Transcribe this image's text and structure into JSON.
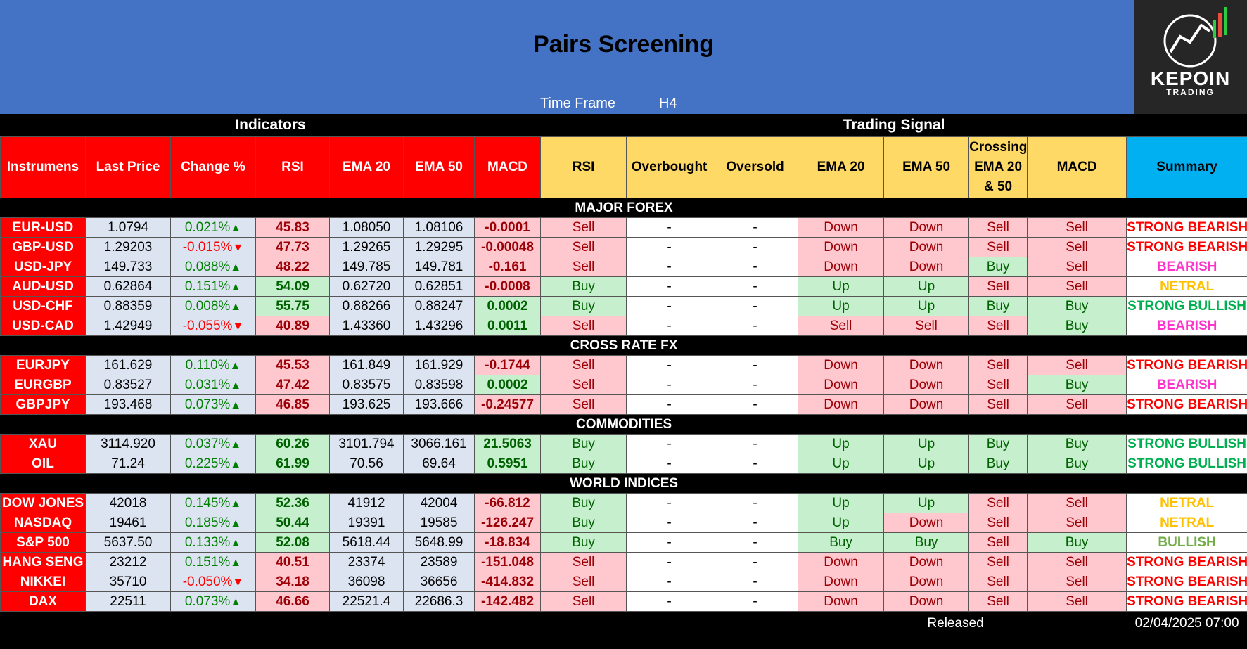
{
  "header": {
    "title": "Pairs Screening",
    "timeframe_label": "Time Frame",
    "timeframe": "H4",
    "logo": "KEPOIN",
    "logo_sub": "TRADING"
  },
  "groups": [
    "Indicators",
    "Trading Signal"
  ],
  "columns": [
    "Instrumens",
    "Last Price",
    "Change %",
    "RSI",
    "EMA 20",
    "EMA 50",
    "MACD",
    "RSI",
    "Overbought",
    "Oversold",
    "EMA 20",
    "EMA 50",
    "Crossing EMA 20 & 50",
    "MACD",
    "Summary"
  ],
  "sections": [
    {
      "name": "MAJOR FOREX",
      "rows": [
        [
          "EUR-USD",
          "1.0794",
          "0.021%",
          "45.83",
          "1.08050",
          "1.08106",
          "-0.0001",
          "Sell",
          "-",
          "-",
          "Down",
          "Down",
          "Sell",
          "Sell",
          "STRONG BEARISH"
        ],
        [
          "GBP-USD",
          "1.29203",
          "-0.015%",
          "47.73",
          "1.29265",
          "1.29295",
          "-0.00048",
          "Sell",
          "-",
          "-",
          "Down",
          "Down",
          "Sell",
          "Sell",
          "STRONG BEARISH"
        ],
        [
          "USD-JPY",
          "149.733",
          "0.088%",
          "48.22",
          "149.785",
          "149.781",
          "-0.161",
          "Sell",
          "-",
          "-",
          "Down",
          "Down",
          "Buy",
          "Sell",
          "BEARISH"
        ],
        [
          "AUD-USD",
          "0.62864",
          "0.151%",
          "54.09",
          "0.62720",
          "0.62851",
          "-0.0008",
          "Buy",
          "-",
          "-",
          "Up",
          "Up",
          "Sell",
          "Sell",
          "NETRAL"
        ],
        [
          "USD-CHF",
          "0.88359",
          "0.008%",
          "55.75",
          "0.88266",
          "0.88247",
          "0.0002",
          "Buy",
          "-",
          "-",
          "Up",
          "Up",
          "Buy",
          "Buy",
          "STRONG BULLISH"
        ],
        [
          "USD-CAD",
          "1.42949",
          "-0.055%",
          "40.89",
          "1.43360",
          "1.43296",
          "0.0011",
          "Sell",
          "-",
          "-",
          "Sell",
          "Sell",
          "Sell",
          "Buy",
          "BEARISH"
        ]
      ]
    },
    {
      "name": "CROSS RATE FX",
      "rows": [
        [
          "EURJPY",
          "161.629",
          "0.110%",
          "45.53",
          "161.849",
          "161.929",
          "-0.1744",
          "Sell",
          "-",
          "-",
          "Down",
          "Down",
          "Sell",
          "Sell",
          "STRONG BEARISH"
        ],
        [
          "EURGBP",
          "0.83527",
          "0.031%",
          "47.42",
          "0.83575",
          "0.83598",
          "0.0002",
          "Sell",
          "-",
          "-",
          "Down",
          "Down",
          "Sell",
          "Buy",
          "BEARISH"
        ],
        [
          "GBPJPY",
          "193.468",
          "0.073%",
          "46.85",
          "193.625",
          "193.666",
          "-0.24577",
          "Sell",
          "-",
          "-",
          "Down",
          "Down",
          "Sell",
          "Sell",
          "STRONG BEARISH"
        ]
      ]
    },
    {
      "name": "COMMODITIES",
      "rows": [
        [
          "XAU",
          "3114.920",
          "0.037%",
          "60.26",
          "3101.794",
          "3066.161",
          "21.5063",
          "Buy",
          "-",
          "-",
          "Up",
          "Up",
          "Buy",
          "Buy",
          "STRONG BULLISH"
        ],
        [
          "OIL",
          "71.24",
          "0.225%",
          "61.99",
          "70.56",
          "69.64",
          "0.5951",
          "Buy",
          "-",
          "-",
          "Up",
          "Up",
          "Buy",
          "Buy",
          "STRONG BULLISH"
        ]
      ]
    },
    {
      "name": "WORLD INDICES",
      "rows": [
        [
          "DOW JONES",
          "42018",
          "0.145%",
          "52.36",
          "41912",
          "42004",
          "-66.812",
          "Buy",
          "-",
          "-",
          "Up",
          "Up",
          "Sell",
          "Sell",
          "NETRAL"
        ],
        [
          "NASDAQ",
          "19461",
          "0.185%",
          "50.44",
          "19391",
          "19585",
          "-126.247",
          "Buy",
          "-",
          "-",
          "Up",
          "Down",
          "Sell",
          "Sell",
          "NETRAL"
        ],
        [
          "S&P 500",
          "5637.50",
          "0.133%",
          "52.08",
          "5618.44",
          "5648.99",
          "-18.834",
          "Buy",
          "-",
          "-",
          "Buy",
          "Buy",
          "Sell",
          "Buy",
          "BULLISH"
        ],
        [
          "HANG SENG",
          "23212",
          "0.151%",
          "40.51",
          "23374",
          "23589",
          "-151.048",
          "Sell",
          "-",
          "-",
          "Down",
          "Down",
          "Sell",
          "Sell",
          "STRONG BEARISH"
        ],
        [
          "NIKKEI",
          "35710",
          "-0.050%",
          "34.18",
          "36098",
          "36656",
          "-414.832",
          "Sell",
          "-",
          "-",
          "Down",
          "Down",
          "Sell",
          "Sell",
          "STRONG BEARISH"
        ],
        [
          "DAX",
          "22511",
          "0.073%",
          "46.66",
          "22521.4",
          "22686.3",
          "-142.482",
          "Sell",
          "-",
          "-",
          "Down",
          "Down",
          "Sell",
          "Sell",
          "STRONG BEARISH"
        ]
      ]
    }
  ],
  "footer": {
    "label": "Released",
    "date": "02/04/2025 07:00"
  }
}
